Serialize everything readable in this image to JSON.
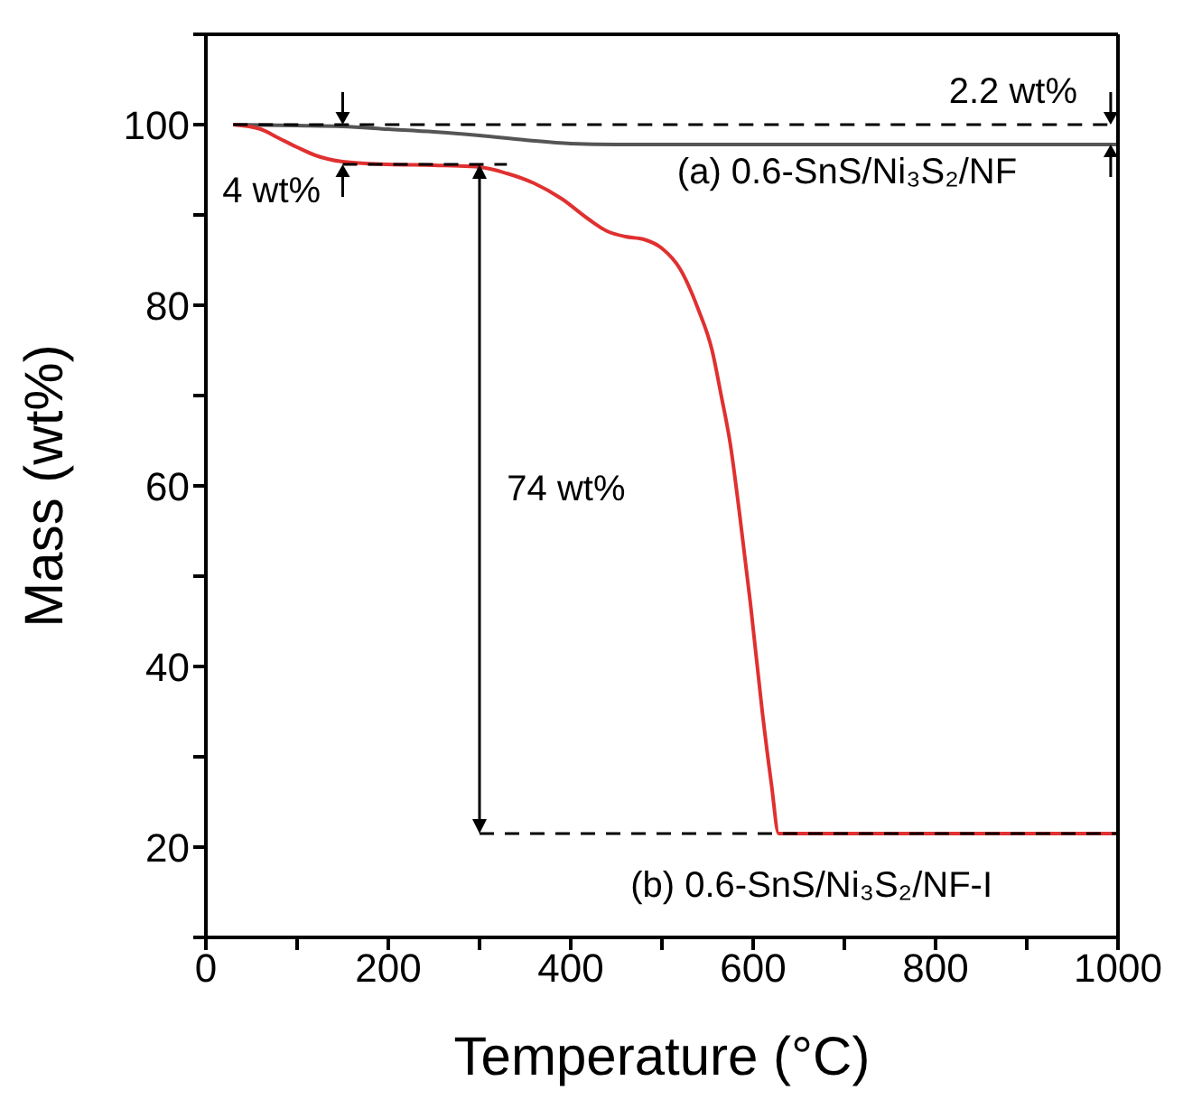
{
  "chart_data": {
    "type": "line",
    "xlabel": "Temperature (°C)",
    "ylabel": "Mass (wt%)",
    "xlim": [
      0,
      1000
    ],
    "xticks": [
      0,
      {
        "value": 100,
        "label": null
      },
      200,
      {
        "value": 300,
        "label": null
      },
      400,
      {
        "value": 500,
        "label": null
      },
      600,
      {
        "value": 700,
        "label": null
      },
      800,
      {
        "value": 900,
        "label": null
      },
      1000
    ],
    "ylim": [
      10,
      110
    ],
    "yticks": [
      {
        "value": 10,
        "label": null
      },
      20,
      {
        "value": 30,
        "label": null
      },
      40,
      {
        "value": 50,
        "label": null
      },
      60,
      {
        "value": 70,
        "label": null
      },
      80,
      {
        "value": 90,
        "label": null
      },
      100,
      {
        "value": 110,
        "label": null
      }
    ],
    "marker": "none",
    "series": [
      {
        "color": "#555555",
        "x": [
          30,
          100,
          150,
          200,
          250,
          300,
          350,
          400,
          450,
          500,
          600,
          700,
          800,
          900,
          1000
        ],
        "values": [
          100,
          99.9,
          99.8,
          99.5,
          99.2,
          98.8,
          98.3,
          97.9,
          97.8,
          97.8,
          97.8,
          97.8,
          97.8,
          97.8,
          97.8
        ]
      },
      {
        "color": "#e03030",
        "x": [
          30,
          60,
          80,
          100,
          120,
          150,
          200,
          250,
          300,
          330,
          360,
          390,
          420,
          440,
          460,
          480,
          500,
          520,
          540,
          555,
          565,
          575,
          585,
          597,
          610,
          620,
          628,
          700,
          800,
          900,
          1000
        ],
        "values": [
          100,
          99.5,
          98.5,
          97.5,
          96.6,
          95.9,
          95.6,
          95.5,
          95.3,
          94.6,
          93.5,
          91.8,
          89.5,
          88.2,
          87.6,
          87.3,
          86.3,
          84,
          79.5,
          75,
          70,
          64.6,
          57,
          47,
          35,
          27,
          21.5,
          21.5,
          21.5,
          21.5,
          21.5
        ]
      },
      {
        "color": "#000000",
        "line_style": "dashed",
        "x": [
          30,
          1000
        ],
        "values": [
          100,
          100
        ]
      },
      {
        "color": "#000000",
        "line_style": "dashed",
        "x": [
          150,
          330
        ],
        "values": [
          95.6,
          95.6
        ]
      },
      {
        "color": "#000000",
        "line_style": "dashed",
        "x": [
          300,
          1000
        ],
        "values": [
          21.5,
          21.5
        ]
      }
    ],
    "annotations": [
      "2.2 wt%",
      "(a) 0.6-SnS/Ni₃S₂/NF",
      "4 wt%",
      "74 wt%",
      "(b) 0.6-SnS/Ni₃S₂/NF-I"
    ]
  }
}
